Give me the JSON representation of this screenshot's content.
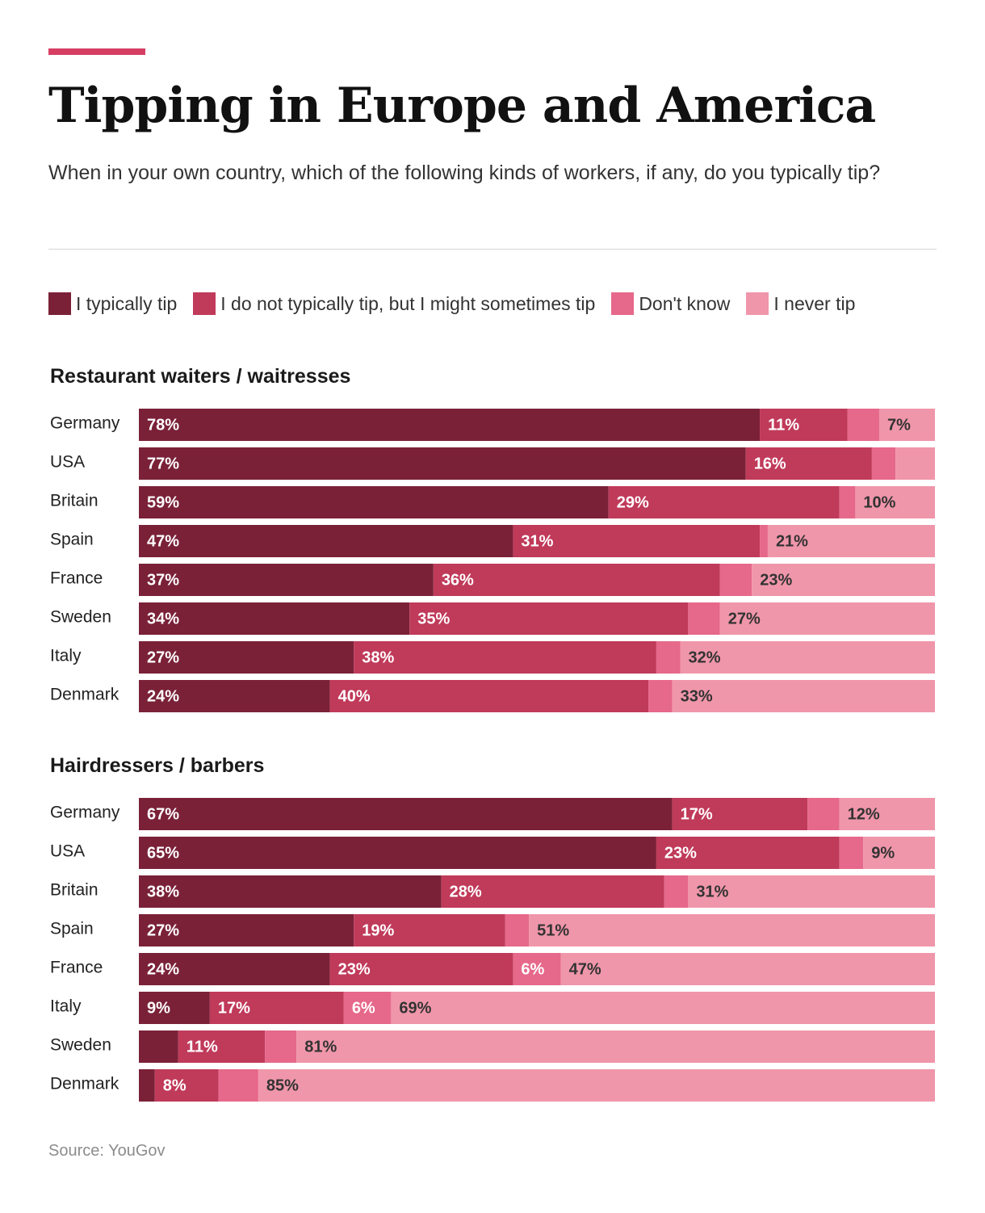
{
  "header": {
    "title": "Tipping in Europe and America",
    "subtitle": "When in your own country, which of the following kinds of workers, if any, do you typically tip?",
    "accent_color": "#d63f63"
  },
  "legend": {
    "items": [
      {
        "label": "I typically tip",
        "color": "#7a2138"
      },
      {
        "label": "I do not typically tip, but I might sometimes tip",
        "color": "#c03a5a"
      },
      {
        "label": "Don't know",
        "color": "#e6688a"
      },
      {
        "label": "I never tip",
        "color": "#f096aa"
      }
    ]
  },
  "chart_data": [
    {
      "type": "bar",
      "orientation": "horizontal",
      "stacked": true,
      "title": "Restaurant waiters / waitresses",
      "categories": [
        "Germany",
        "USA",
        "Britain",
        "Spain",
        "France",
        "Sweden",
        "Italy",
        "Denmark"
      ],
      "series": [
        {
          "name": "I typically tip",
          "values": [
            78,
            77,
            59,
            47,
            37,
            34,
            27,
            24
          ],
          "labels": [
            "78%",
            "77%",
            "59%",
            "47%",
            "37%",
            "34%",
            "27%",
            "24%"
          ]
        },
        {
          "name": "I do not typically tip, but I might sometimes tip",
          "values": [
            11,
            16,
            29,
            31,
            36,
            35,
            38,
            40
          ],
          "labels": [
            "11%",
            "16%",
            "29%",
            "31%",
            "36%",
            "35%",
            "38%",
            "40%"
          ]
        },
        {
          "name": "Don't know",
          "values": [
            4,
            3,
            2,
            1,
            4,
            4,
            3,
            3
          ],
          "labels": [
            "",
            "",
            "",
            "",
            "",
            "",
            "",
            ""
          ]
        },
        {
          "name": "I never tip",
          "values": [
            7,
            5,
            10,
            21,
            23,
            27,
            32,
            33
          ],
          "labels": [
            "7%",
            "",
            "10%",
            "21%",
            "23%",
            "27%",
            "32%",
            "33%"
          ]
        }
      ],
      "xlim": [
        0,
        100
      ]
    },
    {
      "type": "bar",
      "orientation": "horizontal",
      "stacked": true,
      "title": "Hairdressers / barbers",
      "categories": [
        "Germany",
        "USA",
        "Britain",
        "Spain",
        "France",
        "Italy",
        "Sweden",
        "Denmark"
      ],
      "series": [
        {
          "name": "I typically tip",
          "values": [
            67,
            65,
            38,
            27,
            24,
            9,
            5,
            2
          ],
          "labels": [
            "67%",
            "65%",
            "38%",
            "27%",
            "24%",
            "9%",
            "",
            ""
          ]
        },
        {
          "name": "I do not typically tip, but I might sometimes tip",
          "values": [
            17,
            23,
            28,
            19,
            23,
            17,
            11,
            8
          ],
          "labels": [
            "17%",
            "23%",
            "28%",
            "19%",
            "23%",
            "17%",
            "11%",
            "8%"
          ]
        },
        {
          "name": "Don't know",
          "values": [
            4,
            3,
            3,
            3,
            6,
            6,
            4,
            5
          ],
          "labels": [
            "",
            "",
            "",
            "",
            "6%",
            "6%",
            "",
            ""
          ]
        },
        {
          "name": "I never tip",
          "values": [
            12,
            9,
            31,
            51,
            47,
            69,
            81,
            85
          ],
          "labels": [
            "12%",
            "9%",
            "31%",
            "51%",
            "47%",
            "69%",
            "81%",
            "85%"
          ]
        }
      ],
      "xlim": [
        0,
        100
      ]
    }
  ],
  "footer": {
    "source": "Source: YouGov"
  }
}
